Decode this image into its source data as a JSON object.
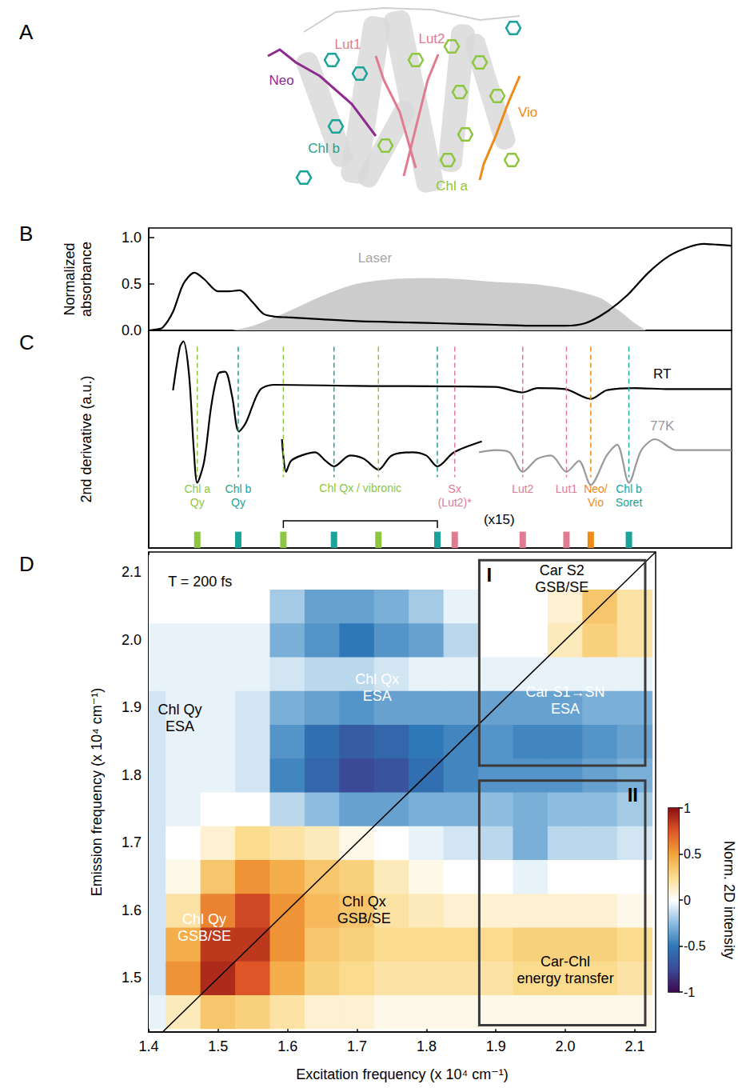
{
  "diagram": {
    "letter": "A",
    "labels": [
      {
        "text": "Neo",
        "color": "#8e2c8e"
      },
      {
        "text": "Lut1",
        "color": "#e07b91"
      },
      {
        "text": "Lut2",
        "color": "#e07b91"
      },
      {
        "text": "Vio",
        "color": "#ef8a17"
      },
      {
        "text": "Chl b",
        "color": "#1aa39a"
      },
      {
        "text": "Chl a",
        "color": "#8dc63f"
      }
    ]
  },
  "chart_data": [
    {
      "letter": "B",
      "type": "line",
      "ylabel": [
        "Normalized",
        "absorbance"
      ],
      "xlim": [
        1.4,
        2.24
      ],
      "ylim": [
        0,
        1.1
      ],
      "yticks": [
        {
          "value": 0,
          "label": "0.0"
        },
        0.5,
        {
          "value": 1,
          "label": "1.0"
        }
      ],
      "tick_labels": "y",
      "series": [
        {
          "type": "area",
          "color": "#cccccc",
          "x": [
            1.52,
            1.55,
            1.6,
            1.65,
            1.7,
            1.75,
            1.8,
            1.85,
            1.9,
            1.95,
            2.0,
            2.05,
            2.08,
            2.1,
            2.117
          ],
          "values": [
            0,
            0.05,
            0.2,
            0.37,
            0.5,
            0.55,
            0.56,
            0.55,
            0.52,
            0.5,
            0.45,
            0.35,
            0.2,
            0.08,
            0
          ]
        },
        {
          "type": "line",
          "color": "#000000",
          "x": [
            1.4,
            1.41,
            1.42,
            1.435,
            1.45,
            1.466,
            1.48,
            1.5,
            1.515,
            1.531,
            1.55,
            1.565,
            1.58,
            1.6,
            1.65,
            1.7,
            1.75,
            1.8,
            1.85,
            1.9,
            1.95,
            2.0,
            2.03,
            2.06,
            2.09,
            2.12,
            2.15,
            2.18,
            2.2,
            2.22,
            2.24
          ],
          "values": [
            0,
            0.01,
            0.03,
            0.2,
            0.5,
            0.62,
            0.55,
            0.42,
            0.42,
            0.43,
            0.3,
            0.18,
            0.15,
            0.14,
            0.12,
            0.1,
            0.09,
            0.08,
            0.07,
            0.06,
            0.05,
            0.05,
            0.08,
            0.2,
            0.38,
            0.62,
            0.8,
            0.9,
            0.93,
            0.92,
            0.91
          ]
        }
      ],
      "annotations": [
        {
          "text": "Laser",
          "x": 1.726,
          "y": 0.78,
          "color": "#a6a6a6"
        }
      ]
    },
    {
      "letter": "C",
      "type": "line",
      "ylabel": "2nd derivative (a.u.)",
      "xlim": [
        1.4,
        2.24
      ],
      "ylim": [
        -1,
        1
      ],
      "tick_labels": false,
      "series": [
        {
          "type": "line",
          "color": "#000000",
          "x": [
            1.435,
            1.445,
            1.45,
            1.458,
            1.465,
            1.47,
            1.48,
            1.49,
            1.5,
            1.51,
            1.52,
            1.53,
            1.54,
            1.56,
            1.58,
            1.7,
            1.9,
            1.939,
            1.96,
            2.0,
            2.037,
            2.06,
            2.1,
            2.15,
            2.24
          ],
          "values": [
            0.45,
            0.85,
            0.9,
            0.6,
            -0.1,
            -0.4,
            -0.2,
            0.3,
            0.6,
            0.62,
            0.4,
            0.07,
            0.15,
            0.45,
            0.5,
            0.49,
            0.48,
            0.43,
            0.47,
            0.46,
            0.37,
            0.45,
            0.47,
            0.46,
            0.46
          ]
        },
        {
          "type": "line",
          "color": "#000000",
          "x": [
            1.592,
            1.598,
            1.605,
            1.62,
            1.64,
            1.655,
            1.667,
            1.69,
            1.71,
            1.731,
            1.75,
            1.78,
            1.8,
            1.816,
            1.84,
            1.88
          ],
          "values": [
            0,
            -0.3,
            -0.2,
            -0.15,
            -0.12,
            -0.2,
            -0.25,
            -0.15,
            -0.18,
            -0.28,
            -0.15,
            -0.12,
            -0.15,
            -0.25,
            -0.12,
            -0.02
          ]
        },
        {
          "type": "line",
          "color": "#999999",
          "x": [
            1.876,
            1.9,
            1.92,
            1.939,
            1.96,
            1.98,
            2.002,
            2.02,
            2.037,
            2.06,
            2.075,
            2.092,
            2.11,
            2.13,
            2.16,
            2.2,
            2.24
          ],
          "values": [
            -0.12,
            -0.1,
            -0.12,
            -0.3,
            -0.18,
            -0.15,
            -0.3,
            -0.2,
            -0.42,
            -0.15,
            -0.05,
            -0.4,
            -0.1,
            0,
            -0.1,
            -0.1,
            -0.1
          ]
        }
      ],
      "annotations": [
        {
          "text": "RT",
          "x": 2.14,
          "y": 0.6,
          "color": "#000000"
        },
        {
          "text": "77K",
          "x": 2.14,
          "y": 0.12,
          "color": "#999999"
        },
        {
          "text": "(x15)",
          "x": 1.905,
          "y": -0.74,
          "color": "#000000"
        }
      ],
      "markers": [
        {
          "x": 1.47,
          "color": "#8dc63f",
          "label": [
            "Chl a",
            "Qy"
          ]
        },
        {
          "x": 1.529,
          "color": "#1aa39a",
          "label": [
            "Chl b",
            "Qy"
          ]
        },
        {
          "x": 1.594,
          "color": "#8dc63f"
        },
        {
          "x": 1.667,
          "color": "#1aa39a"
        },
        {
          "x": 1.731,
          "color": "#8dc63f"
        },
        {
          "x": 1.816,
          "color": "#1aa39a"
        },
        {
          "x": 1.841,
          "color": "#e07b91",
          "label": [
            "Sx",
            "(Lut2)*"
          ]
        },
        {
          "x": 1.939,
          "color": "#e07b91",
          "label": [
            "Lut2"
          ]
        },
        {
          "x": 2.002,
          "color": "#e07b91",
          "label": [
            "Lut1"
          ]
        },
        {
          "x": 2.037,
          "color": "#ef8a17",
          "label": [
            "Neo/",
            "Vio"
          ]
        },
        {
          "x": 2.092,
          "color": "#1aa39a",
          "label": [
            "Chl b",
            "Soret"
          ]
        }
      ],
      "bracket": {
        "label": "Chl Qx / vibronic",
        "from": 1.594,
        "to": 1.816,
        "color": "#8dc63f"
      }
    },
    {
      "letter": "D",
      "type": "heatmap",
      "xlabel": "Excitation frequency (x 10⁴ cm⁻¹)",
      "ylabel": "Emission frequency (x 10⁴ cm⁻¹)",
      "xlim": [
        1.4,
        2.13
      ],
      "ylim": [
        1.42,
        2.13
      ],
      "xticks": [
        1.4,
        1.5,
        1.6,
        1.7,
        1.8,
        1.9,
        {
          "value": 2,
          "label": "2.0"
        },
        2.1
      ],
      "yticks": [
        1.5,
        1.6,
        1.7,
        1.8,
        1.9,
        {
          "value": 2,
          "label": "2.0"
        },
        2.1
      ],
      "heatmap": {
        "x": [
          1.4,
          1.45,
          1.5,
          1.55,
          1.6,
          1.65,
          1.7,
          1.75,
          1.8,
          1.85,
          1.9,
          1.95,
          2.0,
          2.05,
          2.1
        ],
        "y": [
          1.45,
          1.5,
          1.55,
          1.6,
          1.65,
          1.7,
          1.75,
          1.8,
          1.85,
          1.9,
          1.95,
          2.0,
          2.05,
          2.1
        ],
        "values": [
          [
            -0.05,
            0.15,
            0.35,
            0.3,
            0.2,
            0.1,
            0.1,
            0.05,
            0.05,
            0.05,
            0.05,
            0.05,
            0.05,
            0.05,
            0.05
          ],
          [
            -0.1,
            0.55,
            0.9,
            0.75,
            0.45,
            0.3,
            0.25,
            0.2,
            0.2,
            0.2,
            0.2,
            0.25,
            0.25,
            0.25,
            0.2
          ],
          [
            -0.1,
            0.45,
            0.85,
            0.85,
            0.55,
            0.35,
            0.3,
            0.25,
            0.25,
            0.25,
            0.25,
            0.3,
            0.3,
            0.3,
            0.25
          ],
          [
            -0.1,
            0.2,
            0.6,
            0.8,
            0.55,
            0.4,
            0.35,
            0.2,
            0.15,
            0.1,
            0.1,
            0.1,
            0.1,
            0.1,
            0.05
          ],
          [
            -0.1,
            0.05,
            0.35,
            0.55,
            0.45,
            0.35,
            0.3,
            0.15,
            0.05,
            0,
            0,
            -0.05,
            0,
            0,
            0
          ],
          [
            -0.1,
            0,
            0.1,
            0.25,
            0.2,
            0.15,
            0.05,
            0,
            -0.05,
            -0.1,
            -0.15,
            -0.3,
            -0.15,
            -0.15,
            -0.1
          ],
          [
            -0.1,
            -0.05,
            0,
            0,
            -0.15,
            -0.25,
            -0.35,
            -0.35,
            -0.3,
            -0.3,
            -0.25,
            -0.3,
            -0.25,
            -0.25,
            -0.2
          ],
          [
            -0.1,
            -0.05,
            -0.05,
            -0.1,
            -0.45,
            -0.6,
            -0.75,
            -0.7,
            -0.55,
            -0.45,
            -0.4,
            -0.4,
            -0.4,
            -0.35,
            -0.3
          ],
          [
            -0.1,
            -0.05,
            -0.05,
            -0.1,
            -0.4,
            -0.55,
            -0.65,
            -0.6,
            -0.5,
            -0.45,
            -0.4,
            -0.45,
            -0.45,
            -0.4,
            -0.35
          ],
          [
            -0.1,
            -0.05,
            -0.05,
            -0.1,
            -0.3,
            -0.35,
            -0.4,
            -0.35,
            -0.35,
            -0.35,
            -0.35,
            -0.35,
            -0.35,
            -0.3,
            -0.3
          ],
          [
            -0.05,
            -0.05,
            -0.05,
            -0.05,
            -0.1,
            -0.15,
            -0.15,
            -0.1,
            -0.05,
            -0.05,
            -0.05,
            -0.05,
            -0.05,
            -0.05,
            -0.05
          ],
          [
            -0.05,
            -0.05,
            -0.05,
            -0.05,
            -0.3,
            -0.4,
            -0.5,
            -0.4,
            -0.35,
            -0.15,
            0,
            0,
            0.15,
            0.3,
            0.2
          ],
          [
            0,
            0,
            0,
            0,
            -0.2,
            -0.35,
            -0.35,
            -0.3,
            -0.2,
            -0.05,
            0,
            0,
            0.1,
            0.35,
            0.2
          ],
          [
            0,
            0,
            0,
            0,
            0,
            0,
            0,
            0,
            0,
            0,
            0,
            0,
            0,
            0,
            0
          ]
        ]
      },
      "diagonal": [
        [
          1.4,
          1.4
        ],
        [
          2.13,
          2.13
        ]
      ],
      "regions": [
        {
          "label": "I",
          "x": [
            1.876,
            2.115
          ],
          "y": [
            1.814,
            2.118
          ]
        },
        {
          "label": "II",
          "x": [
            1.876,
            2.115
          ],
          "y": [
            1.43,
            1.792
          ]
        }
      ],
      "annotations": [
        {
          "text": "T = 200 fs",
          "x": 1.474,
          "y": 2.086,
          "color": "#000000"
        },
        {
          "text": [
            "Car S2",
            "GSB/SE"
          ],
          "x": 1.995,
          "y": 2.09,
          "color": "#000000"
        },
        {
          "text": [
            "Car S1→SN",
            "ESA"
          ],
          "x": 2.0,
          "y": 1.91,
          "color": "#ffffff"
        },
        {
          "text": [
            "Chl Qx",
            "ESA"
          ],
          "x": 1.729,
          "y": 1.93,
          "color": "#ffffff"
        },
        {
          "text": [
            "Chl Qy",
            "ESA"
          ],
          "x": 1.445,
          "y": 1.885,
          "color": "#000000"
        },
        {
          "text": [
            "Chl Qx",
            "GSB/SE"
          ],
          "x": 1.71,
          "y": 1.6,
          "color": "#000000"
        },
        {
          "text": [
            "Chl Qy",
            "GSB/SE"
          ],
          "x": 1.48,
          "y": 1.575,
          "color": "#ffffff"
        },
        {
          "text": [
            "Car-Chl",
            "energy transfer"
          ],
          "x": 2.0,
          "y": 1.512,
          "color": "#000000"
        }
      ],
      "colorbar": {
        "label": "Norm. 2D intensity",
        "range": [
          -1,
          1
        ],
        "ticks": [
          -1,
          -0.5,
          0,
          0.5,
          1
        ]
      }
    }
  ]
}
